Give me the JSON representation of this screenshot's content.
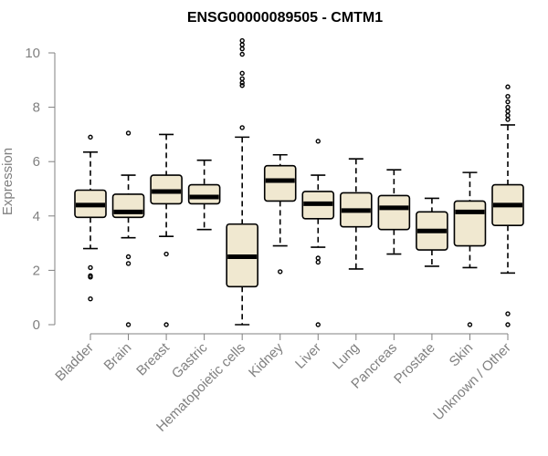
{
  "chart_data": {
    "type": "box",
    "title": "ENSG00000089505 - CMTM1",
    "xlabel": "",
    "ylabel": "Expression",
    "ylim": [
      0,
      10
    ],
    "yticks": [
      0,
      2,
      4,
      6,
      8,
      10
    ],
    "grid": false,
    "box_fill": "#f0e8d0",
    "categories": [
      "Bladder",
      "Brain",
      "Breast",
      "Gastric",
      "Hematopoietic cells",
      "Kidney",
      "Liver",
      "Lung",
      "Pancreas",
      "Prostate",
      "Skin",
      "Unknown / Other"
    ],
    "boxes": [
      {
        "category": "Bladder",
        "whisker_low": 2.8,
        "q1": 3.95,
        "median": 4.4,
        "q3": 4.95,
        "whisker_high": 6.35,
        "outliers": [
          6.9,
          2.1,
          1.8,
          1.75,
          0.95
        ]
      },
      {
        "category": "Brain",
        "whisker_low": 3.2,
        "q1": 3.95,
        "median": 4.15,
        "q3": 4.8,
        "whisker_high": 5.5,
        "outliers": [
          7.05,
          2.5,
          2.25,
          0.0
        ]
      },
      {
        "category": "Breast",
        "whisker_low": 3.25,
        "q1": 4.45,
        "median": 4.9,
        "q3": 5.5,
        "whisker_high": 7.0,
        "outliers": [
          2.6,
          0.0
        ]
      },
      {
        "category": "Gastric",
        "whisker_low": 3.5,
        "q1": 4.45,
        "median": 4.7,
        "q3": 5.15,
        "whisker_high": 6.05,
        "outliers": []
      },
      {
        "category": "Hematopoietic cells",
        "whisker_low": 0.0,
        "q1": 1.4,
        "median": 2.5,
        "q3": 3.7,
        "whisker_high": 6.9,
        "outliers": [
          10.45,
          10.3,
          10.15,
          9.95,
          9.25,
          9.05,
          8.9,
          8.8,
          7.25
        ]
      },
      {
        "category": "Kidney",
        "whisker_low": 2.9,
        "q1": 4.55,
        "median": 5.3,
        "q3": 5.85,
        "whisker_high": 6.25,
        "outliers": [
          1.95
        ]
      },
      {
        "category": "Liver",
        "whisker_low": 2.85,
        "q1": 3.9,
        "median": 4.45,
        "q3": 4.9,
        "whisker_high": 5.5,
        "outliers": [
          6.75,
          2.45,
          2.3,
          0.0
        ]
      },
      {
        "category": "Lung",
        "whisker_low": 2.05,
        "q1": 3.6,
        "median": 4.2,
        "q3": 4.85,
        "whisker_high": 6.1,
        "outliers": []
      },
      {
        "category": "Pancreas",
        "whisker_low": 2.6,
        "q1": 3.5,
        "median": 4.3,
        "q3": 4.75,
        "whisker_high": 5.7,
        "outliers": []
      },
      {
        "category": "Prostate",
        "whisker_low": 2.15,
        "q1": 2.75,
        "median": 3.45,
        "q3": 4.15,
        "whisker_high": 4.65,
        "outliers": []
      },
      {
        "category": "Skin",
        "whisker_low": 2.1,
        "q1": 2.9,
        "median": 4.15,
        "q3": 4.55,
        "whisker_high": 5.6,
        "outliers": [
          0.0
        ]
      },
      {
        "category": "Unknown / Other",
        "whisker_low": 1.9,
        "q1": 3.65,
        "median": 4.4,
        "q3": 5.15,
        "whisker_high": 7.35,
        "outliers": [
          8.75,
          8.4,
          8.2,
          8.0,
          7.85,
          7.7,
          7.55,
          0.4,
          0.0
        ]
      }
    ]
  }
}
